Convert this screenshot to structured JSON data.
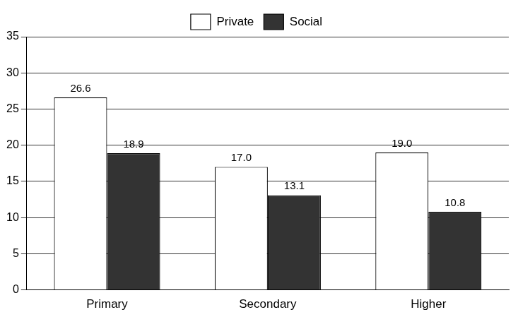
{
  "chart_data": {
    "type": "bar",
    "categories": [
      "Primary",
      "Secondary",
      "Higher"
    ],
    "series": [
      {
        "name": "Private",
        "color": "#ffffff",
        "values": [
          26.6,
          17.0,
          19.0
        ],
        "value_labels": [
          "26.6",
          "17.0",
          "19.0"
        ]
      },
      {
        "name": "Social",
        "color": "#333333",
        "values": [
          18.9,
          13.1,
          10.8
        ],
        "value_labels": [
          "18.9",
          "13.1",
          "10.8"
        ]
      }
    ],
    "ylim": [
      0,
      35
    ],
    "yticks": [
      0,
      5,
      10,
      15,
      20,
      25,
      30,
      35
    ],
    "grid": true,
    "legend": "top",
    "data_labels": true
  }
}
